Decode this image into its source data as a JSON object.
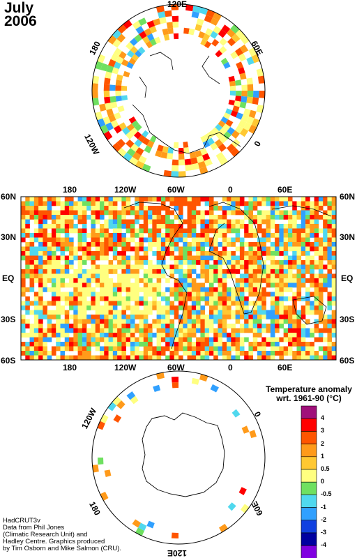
{
  "title": {
    "month": "July",
    "year": "2006"
  },
  "north_polar": {
    "labels": {
      "top": "120E",
      "left": "180",
      "right": "60E",
      "right_low": "0",
      "bottom_left": "120W"
    }
  },
  "main_map": {
    "top_lon_labels": [
      "180",
      "120W",
      "60W",
      "0",
      "60E"
    ],
    "bottom_lon_labels": [
      "180",
      "120W",
      "60W",
      "0",
      "60E"
    ],
    "lat_labels_left": [
      "60N",
      "30N",
      "EQ",
      "30S",
      "60S"
    ],
    "lat_labels_right": [
      "60N",
      "30N",
      "EQ",
      "30S",
      "60S"
    ]
  },
  "south_polar": {
    "labels": {
      "left": "120W",
      "right": "0",
      "bottom_left": "180",
      "bottom": "120E",
      "bottom_right": "60E"
    }
  },
  "legend": {
    "title_line1": "Temperature anomaly",
    "title_line2": "wrt. 1961-90  (°C)",
    "ticks": [
      "4",
      "3",
      "2",
      "1",
      "0.5",
      "0",
      "-0.5",
      "-1",
      "-2",
      "-3",
      "-4"
    ],
    "colors": [
      "#a0107a",
      "#ff0000",
      "#ff5500",
      "#ff9a1a",
      "#ffc832",
      "#ffff80",
      "#6fe060",
      "#50d8ee",
      "#30a0ff",
      "#1040e0",
      "#0000a0",
      "#8000e0"
    ]
  },
  "credit": {
    "line1": "HadCRUT3v",
    "line2": "Data from Phil Jones",
    "line3": "(Climatic Research Unit) and",
    "line4": "Hadley Centre.  Graphics produced",
    "line5": "by Tim Osborn and Mike Salmon (CRU)."
  }
}
